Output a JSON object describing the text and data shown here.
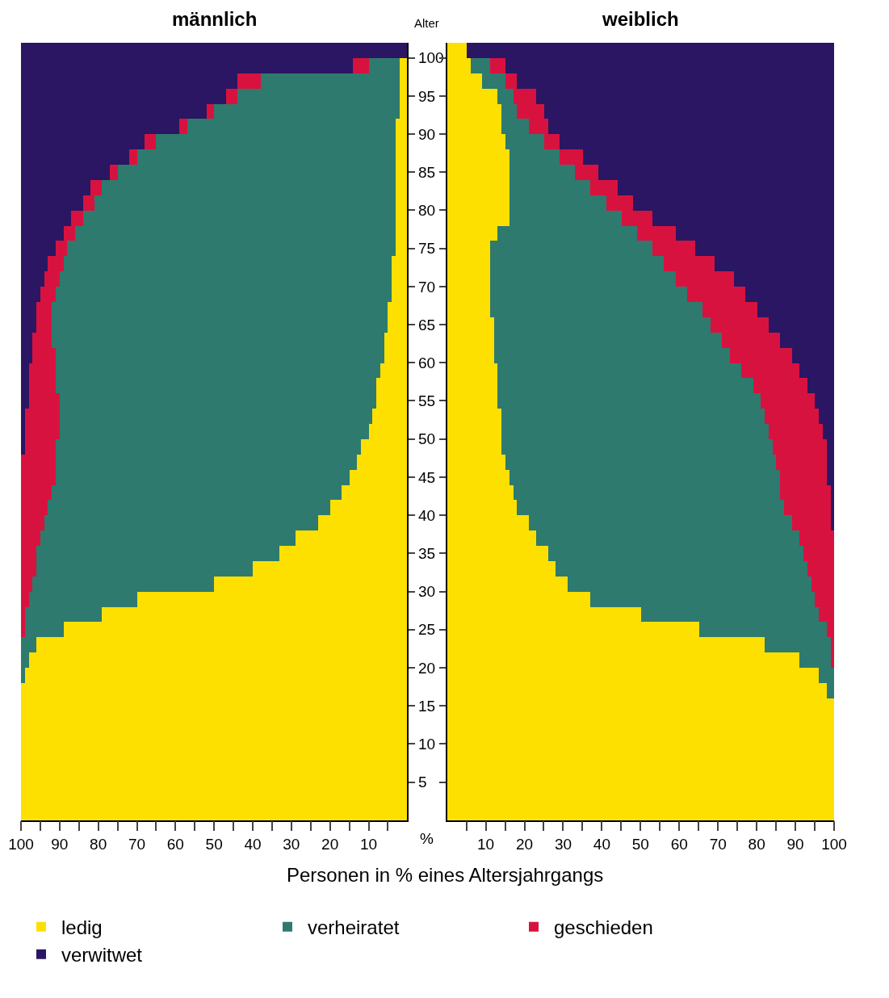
{
  "chart_data": [
    {
      "type": "bar",
      "title": "männlich",
      "orientation": "horizontal",
      "stacked": true,
      "x": [
        1,
        3,
        5,
        7,
        9,
        11,
        13,
        15,
        17,
        19,
        21,
        23,
        25,
        27,
        29,
        31,
        33,
        35,
        37,
        39,
        41,
        43,
        45,
        47,
        49,
        51,
        53,
        55,
        57,
        59,
        61,
        63,
        65,
        67,
        69,
        71,
        73,
        75,
        77,
        79,
        81,
        83,
        85,
        87,
        89,
        91,
        93,
        95,
        97,
        99,
        101
      ],
      "series": [
        {
          "name": "ledig",
          "color": "#fde000",
          "values": [
            100,
            100,
            100,
            100,
            100,
            100,
            100,
            100,
            100,
            99,
            98,
            96,
            89,
            79,
            70,
            50,
            40,
            33,
            29,
            23,
            20,
            17,
            15,
            13,
            12,
            10,
            9,
            8,
            8,
            7,
            6,
            6,
            5,
            5,
            4,
            4,
            4,
            3,
            3,
            3,
            3,
            3,
            3,
            3,
            3,
            3,
            2,
            2,
            2,
            2,
            0
          ]
        },
        {
          "name": "verheiratet",
          "color": "#2e7a6e",
          "values": [
            0,
            0,
            0,
            0,
            0,
            0,
            0,
            0,
            0,
            1,
            2,
            4,
            10,
            20,
            28,
            47,
            56,
            63,
            66,
            71,
            73,
            75,
            76,
            78,
            79,
            80,
            81,
            82,
            83,
            84,
            85,
            86,
            87,
            87,
            87,
            86,
            85,
            85,
            83,
            81,
            78,
            76,
            72,
            67,
            62,
            54,
            48,
            42,
            36,
            8,
            0
          ]
        },
        {
          "name": "geschieden",
          "color": "#d8123f",
          "values": [
            0,
            0,
            0,
            0,
            0,
            0,
            0,
            0,
            0,
            0,
            0,
            0,
            1,
            1,
            2,
            3,
            4,
            4,
            5,
            6,
            7,
            8,
            9,
            9,
            8,
            9,
            9,
            8,
            7,
            7,
            6,
            5,
            4,
            4,
            4,
            4,
            4,
            3,
            3,
            3,
            3,
            3,
            2,
            2,
            3,
            2,
            2,
            3,
            6,
            4,
            0
          ]
        },
        {
          "name": "verwitwet",
          "color": "#2a1663",
          "values": [
            0,
            0,
            0,
            0,
            0,
            0,
            0,
            0,
            0,
            0,
            0,
            0,
            0,
            0,
            0,
            0,
            0,
            0,
            0,
            0,
            0,
            0,
            0,
            0,
            1,
            1,
            1,
            2,
            2,
            2,
            3,
            3,
            4,
            4,
            5,
            6,
            7,
            9,
            11,
            13,
            16,
            18,
            23,
            28,
            32,
            41,
            48,
            53,
            56,
            86,
            100
          ]
        }
      ],
      "xlim": [
        100,
        0
      ],
      "xticks": [
        100,
        90,
        80,
        70,
        60,
        50,
        40,
        30,
        20,
        10,
        {
          "value": 95,
          "label": null
        },
        {
          "value": 85,
          "label": null
        },
        {
          "value": 75,
          "label": null
        },
        {
          "value": 65,
          "label": null
        },
        {
          "value": 55,
          "label": null
        },
        {
          "value": 45,
          "label": null
        },
        {
          "value": 35,
          "label": null
        },
        {
          "value": 25,
          "label": null
        },
        {
          "value": 15,
          "label": null
        },
        {
          "value": 5,
          "label": null
        }
      ],
      "ylim": [
        0,
        102
      ],
      "yticks": [
        5,
        10,
        15,
        20,
        25,
        30,
        35,
        40,
        45,
        50,
        55,
        60,
        65,
        70,
        75,
        80,
        85,
        90,
        95,
        100
      ],
      "ylabel": "Alter",
      "xlabel": "Personen in % eines Altersjahrgangs",
      "annotations": [
        "%"
      ],
      "legend": "bottom"
    },
    {
      "type": "bar",
      "title": "weiblich",
      "orientation": "horizontal",
      "stacked": true,
      "x": [
        1,
        3,
        5,
        7,
        9,
        11,
        13,
        15,
        17,
        19,
        21,
        23,
        25,
        27,
        29,
        31,
        33,
        35,
        37,
        39,
        41,
        43,
        45,
        47,
        49,
        51,
        53,
        55,
        57,
        59,
        61,
        63,
        65,
        67,
        69,
        71,
        73,
        75,
        77,
        79,
        81,
        83,
        85,
        87,
        89,
        91,
        93,
        95,
        97,
        99,
        101
      ],
      "series": [
        {
          "color": "#fde000",
          "values": [
            100,
            100,
            100,
            100,
            100,
            100,
            100,
            100,
            98,
            96,
            91,
            82,
            65,
            50,
            37,
            31,
            28,
            26,
            23,
            21,
            18,
            17,
            16,
            15,
            14,
            14,
            14,
            13,
            13,
            13,
            12,
            12,
            12,
            11,
            11,
            11,
            11,
            11,
            13,
            16,
            16,
            16,
            16,
            16,
            15,
            14,
            14,
            13,
            9,
            6,
            5
          ]
        },
        {
          "color": "#2e7a6e",
          "values": [
            0,
            0,
            0,
            0,
            0,
            0,
            0,
            0,
            2,
            4,
            8,
            17,
            33,
            46,
            58,
            63,
            65,
            66,
            68,
            68,
            69,
            69,
            70,
            70,
            70,
            69,
            68,
            68,
            66,
            63,
            61,
            59,
            56,
            55,
            51,
            48,
            45,
            42,
            36,
            29,
            25,
            21,
            17,
            13,
            10,
            7,
            4,
            4,
            6,
            5,
            0
          ]
        },
        {
          "color": "#d8123f",
          "values": [
            0,
            0,
            0,
            0,
            0,
            0,
            0,
            0,
            0,
            0,
            1,
            1,
            2,
            4,
            5,
            6,
            7,
            8,
            9,
            10,
            12,
            13,
            12,
            13,
            14,
            14,
            14,
            14,
            14,
            15,
            16,
            15,
            15,
            14,
            15,
            15,
            13,
            11,
            10,
            8,
            7,
            7,
            6,
            6,
            4,
            5,
            7,
            6,
            3,
            4,
            0
          ]
        },
        {
          "color": "#2a1663",
          "values": [
            0,
            0,
            0,
            0,
            0,
            0,
            0,
            0,
            0,
            0,
            0,
            0,
            0,
            0,
            0,
            0,
            0,
            0,
            0,
            1,
            1,
            1,
            2,
            2,
            2,
            3,
            4,
            5,
            7,
            9,
            11,
            14,
            17,
            20,
            23,
            26,
            31,
            36,
            41,
            47,
            52,
            56,
            61,
            65,
            71,
            74,
            75,
            77,
            82,
            85,
            95
          ]
        }
      ],
      "xlim": [
        0,
        100
      ],
      "xticks": [
        10,
        20,
        30,
        40,
        50,
        60,
        70,
        80,
        90,
        100,
        {
          "value": 5,
          "label": null
        },
        {
          "value": 15,
          "label": null
        },
        {
          "value": 25,
          "label": null
        },
        {
          "value": 35,
          "label": null
        },
        {
          "value": 45,
          "label": null
        },
        {
          "value": 55,
          "label": null
        },
        {
          "value": 65,
          "label": null
        },
        {
          "value": 75,
          "label": null
        },
        {
          "value": 85,
          "label": null
        },
        {
          "value": 95,
          "label": null
        }
      ],
      "ylim": [
        0,
        102
      ],
      "yticks": [
        5,
        10,
        15,
        20,
        25,
        30,
        35,
        40,
        45,
        50,
        55,
        60,
        65,
        70,
        75,
        80,
        85,
        90,
        95,
        100
      ],
      "tick_labels": "x"
    }
  ]
}
